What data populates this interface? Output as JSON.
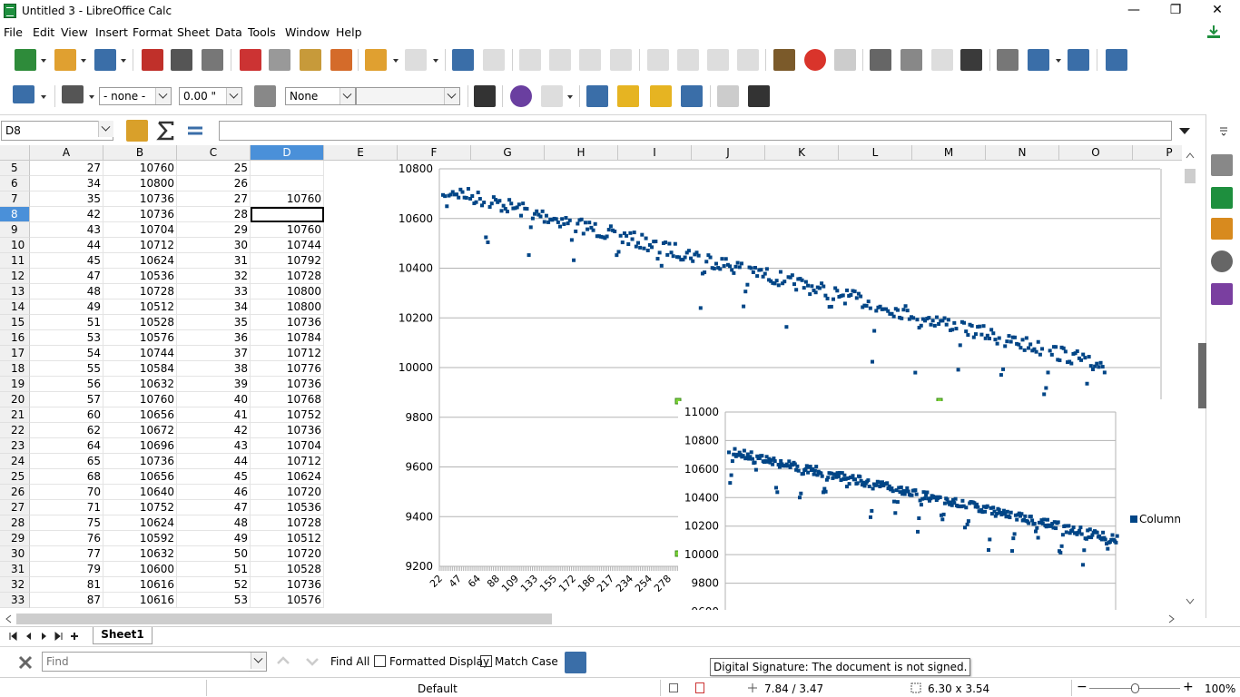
{
  "window": {
    "title": "Untitled 3 - LibreOffice Calc"
  },
  "menu": [
    {
      "label": "File"
    },
    {
      "label": "Edit"
    },
    {
      "label": "View"
    },
    {
      "label": "Insert"
    },
    {
      "label": "Format"
    },
    {
      "label": "Sheet"
    },
    {
      "label": "Data"
    },
    {
      "label": "Tools"
    },
    {
      "label": "Window"
    },
    {
      "label": "Help"
    }
  ],
  "toolbar2": {
    "line_style": "- none -",
    "line_width": "0.00 \"",
    "area_style": "None",
    "area_fill": ""
  },
  "formula": {
    "name_box": "D8",
    "content": ""
  },
  "columns": [
    "A",
    "B",
    "C",
    "D",
    "E",
    "F",
    "G",
    "H",
    "I",
    "J",
    "K",
    "L",
    "M",
    "N",
    "O",
    "P"
  ],
  "selected_column": "D",
  "rows": [
    {
      "n": "5",
      "a": "27",
      "b": "10760",
      "c": "25",
      "d": ""
    },
    {
      "n": "6",
      "a": "34",
      "b": "10800",
      "c": "26",
      "d": ""
    },
    {
      "n": "7",
      "a": "35",
      "b": "10736",
      "c": "27",
      "d": "10760"
    },
    {
      "n": "8",
      "a": "42",
      "b": "10736",
      "c": "28",
      "d": ""
    },
    {
      "n": "9",
      "a": "43",
      "b": "10704",
      "c": "29",
      "d": "10760"
    },
    {
      "n": "10",
      "a": "44",
      "b": "10712",
      "c": "30",
      "d": "10744"
    },
    {
      "n": "11",
      "a": "45",
      "b": "10624",
      "c": "31",
      "d": "10792"
    },
    {
      "n": "12",
      "a": "47",
      "b": "10536",
      "c": "32",
      "d": "10728"
    },
    {
      "n": "13",
      "a": "48",
      "b": "10728",
      "c": "33",
      "d": "10800"
    },
    {
      "n": "14",
      "a": "49",
      "b": "10512",
      "c": "34",
      "d": "10800"
    },
    {
      "n": "15",
      "a": "51",
      "b": "10528",
      "c": "35",
      "d": "10736"
    },
    {
      "n": "16",
      "a": "53",
      "b": "10576",
      "c": "36",
      "d": "10784"
    },
    {
      "n": "17",
      "a": "54",
      "b": "10744",
      "c": "37",
      "d": "10712"
    },
    {
      "n": "18",
      "a": "55",
      "b": "10584",
      "c": "38",
      "d": "10776"
    },
    {
      "n": "19",
      "a": "56",
      "b": "10632",
      "c": "39",
      "d": "10736"
    },
    {
      "n": "20",
      "a": "57",
      "b": "10760",
      "c": "40",
      "d": "10768"
    },
    {
      "n": "21",
      "a": "60",
      "b": "10656",
      "c": "41",
      "d": "10752"
    },
    {
      "n": "22",
      "a": "62",
      "b": "10672",
      "c": "42",
      "d": "10736"
    },
    {
      "n": "23",
      "a": "64",
      "b": "10696",
      "c": "43",
      "d": "10704"
    },
    {
      "n": "24",
      "a": "65",
      "b": "10736",
      "c": "44",
      "d": "10712"
    },
    {
      "n": "25",
      "a": "68",
      "b": "10656",
      "c": "45",
      "d": "10624"
    },
    {
      "n": "26",
      "a": "70",
      "b": "10640",
      "c": "46",
      "d": "10720"
    },
    {
      "n": "27",
      "a": "71",
      "b": "10752",
      "c": "47",
      "d": "10536"
    },
    {
      "n": "28",
      "a": "75",
      "b": "10624",
      "c": "48",
      "d": "10728"
    },
    {
      "n": "29",
      "a": "76",
      "b": "10592",
      "c": "49",
      "d": "10512"
    },
    {
      "n": "30",
      "a": "77",
      "b": "10632",
      "c": "50",
      "d": "10720"
    },
    {
      "n": "31",
      "a": "79",
      "b": "10600",
      "c": "51",
      "d": "10528"
    },
    {
      "n": "32",
      "a": "81",
      "b": "10616",
      "c": "52",
      "d": "10736"
    },
    {
      "n": "33",
      "a": "87",
      "b": "10616",
      "c": "53",
      "d": "10576"
    }
  ],
  "selected_row": "8",
  "chart_data": [
    {
      "type": "scatter",
      "title": "",
      "xlabel": "",
      "ylabel": "",
      "ylim": [
        9200,
        10800
      ],
      "yticks": [
        "10800",
        "10600",
        "10400",
        "10200",
        "10000",
        "9800",
        "9600",
        "9400",
        "9200"
      ],
      "xticks": [
        "22",
        "47",
        "64",
        "88",
        "109",
        "133",
        "155",
        "172",
        "186",
        "217",
        "234",
        "254",
        "278",
        "2"
      ],
      "legend": "Colu",
      "legend_position": "right",
      "series": [
        {
          "name": "Colu",
          "color": "#004586",
          "shape": "square"
        }
      ]
    },
    {
      "type": "scatter",
      "title": "",
      "xlabel": "",
      "ylabel": "",
      "ylim": [
        9600,
        11000
      ],
      "yticks": [
        "11000",
        "10800",
        "10600",
        "10400",
        "10200",
        "10000",
        "9800",
        "9600"
      ],
      "legend": "Column",
      "legend_position": "right",
      "series": [
        {
          "name": "Column",
          "color": "#004586",
          "shape": "square"
        }
      ]
    }
  ],
  "sheet_tabs": [
    {
      "label": "Sheet1"
    }
  ],
  "findbar": {
    "placeholder": "Find",
    "find_all": "Find All",
    "formatted_display": "Formatted Display",
    "match_case": "Match Case"
  },
  "tooltip": "Digital Signature: The document is not signed.",
  "statusbar": {
    "page_style": "Default",
    "position": "7.84 / 3.47",
    "size": "6.30 x 3.54",
    "zoom": "100%"
  },
  "colors": {
    "accent": "#4a90d9",
    "series": "#004586",
    "handle": "#7fd43a"
  }
}
